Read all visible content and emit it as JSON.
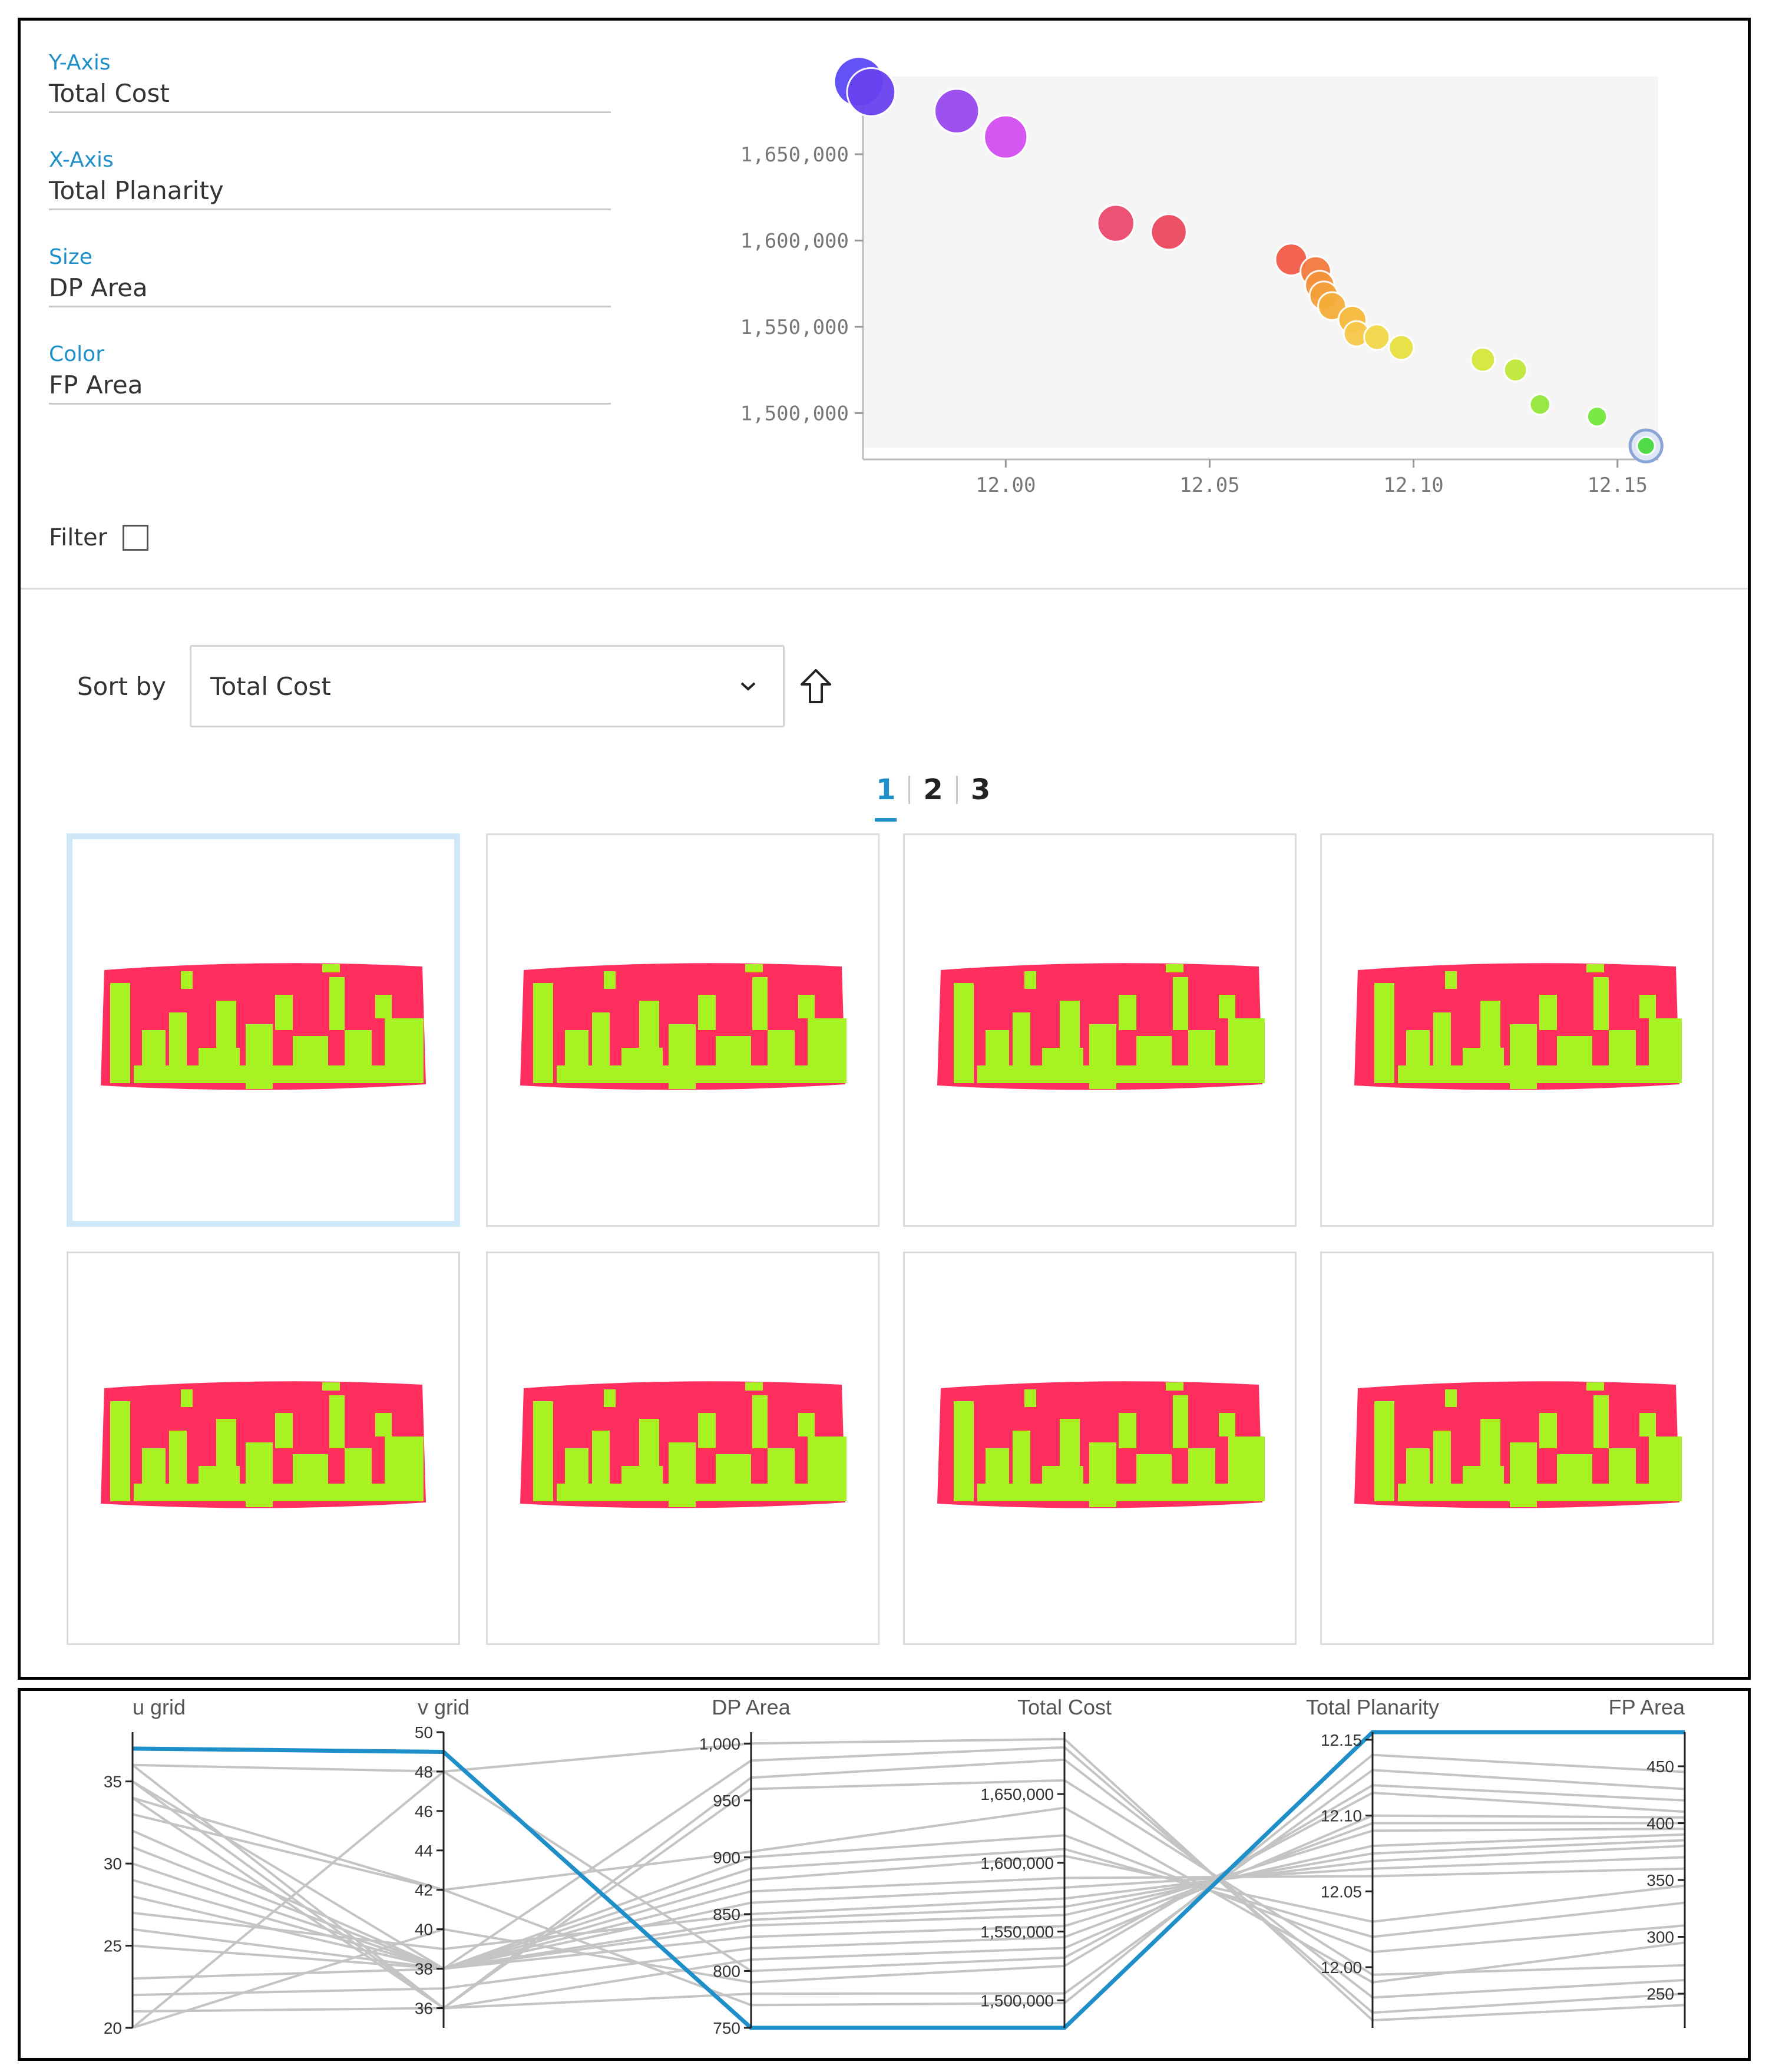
{
  "axis_config": {
    "y_axis": {
      "label": "Y-Axis",
      "value": "Total Cost"
    },
    "x_axis": {
      "label": "X-Axis",
      "value": "Total Planarity"
    },
    "size": {
      "label": "Size",
      "value": "DP Area"
    },
    "color": {
      "label": "Color",
      "value": "FP Area"
    }
  },
  "filter": {
    "label": "Filter",
    "checked": false
  },
  "sort": {
    "label": "Sort by",
    "selected": "Total Cost",
    "direction_icon": "sort-ascending-arrow-icon"
  },
  "pagination": {
    "pages": [
      "1",
      "2",
      "3"
    ],
    "active": "1"
  },
  "colors": {
    "accent": "#1f8fc9",
    "panel_red": "#ff2e5f",
    "panel_green": "#a6f222",
    "card_selected": "#cfe8f8"
  },
  "design_cards": [
    {
      "name": "design-option-1",
      "selected": true
    },
    {
      "name": "design-option-2",
      "selected": false
    },
    {
      "name": "design-option-3",
      "selected": false
    },
    {
      "name": "design-option-4",
      "selected": false
    },
    {
      "name": "design-option-5",
      "selected": false
    },
    {
      "name": "design-option-6",
      "selected": false
    },
    {
      "name": "design-option-7",
      "selected": false
    },
    {
      "name": "design-option-8",
      "selected": false
    }
  ],
  "chart_data": [
    {
      "type": "scatter",
      "title": "",
      "xlabel": "Total Planarity",
      "ylabel": "Total Cost",
      "size_by": "DP Area",
      "color_by": "FP Area",
      "xlim": [
        11.965,
        12.16
      ],
      "ylim": [
        1480000,
        1695000
      ],
      "x_ticks": [
        "12.00",
        "12.05",
        "12.10",
        "12.15"
      ],
      "x_tick_values": [
        12.0,
        12.05,
        12.1,
        12.15
      ],
      "y_ticks": [
        "1,500,000",
        "1,550,000",
        "1,600,000",
        "1,650,000"
      ],
      "y_tick_values": [
        1500000,
        1550000,
        1600000,
        1650000
      ],
      "points": [
        {
          "x": 11.964,
          "y": 1692000,
          "size": 1000,
          "color": "#5b49f5"
        },
        {
          "x": 11.967,
          "y": 1686000,
          "size": 990,
          "color": "#6a42f0"
        },
        {
          "x": 11.988,
          "y": 1675000,
          "size": 960,
          "color": "#9949ee"
        },
        {
          "x": 12.0,
          "y": 1660000,
          "size": 950,
          "color": "#d44ef0"
        },
        {
          "x": 12.027,
          "y": 1610000,
          "size": 900,
          "color": "#ec4a6e"
        },
        {
          "x": 12.04,
          "y": 1605000,
          "size": 890,
          "color": "#ec4a5e"
        },
        {
          "x": 12.07,
          "y": 1589000,
          "size": 860,
          "color": "#f25c4a"
        },
        {
          "x": 12.076,
          "y": 1582000,
          "size": 850,
          "color": "#f27a3e"
        },
        {
          "x": 12.077,
          "y": 1574000,
          "size": 840,
          "color": "#f4923a"
        },
        {
          "x": 12.078,
          "y": 1568000,
          "size": 835,
          "color": "#f5a03a"
        },
        {
          "x": 12.08,
          "y": 1562000,
          "size": 830,
          "color": "#f5ae3a"
        },
        {
          "x": 12.085,
          "y": 1554000,
          "size": 830,
          "color": "#f7b93a"
        },
        {
          "x": 12.086,
          "y": 1546000,
          "size": 810,
          "color": "#f8c84a"
        },
        {
          "x": 12.091,
          "y": 1544000,
          "size": 810,
          "color": "#f1d94a"
        },
        {
          "x": 12.097,
          "y": 1538000,
          "size": 805,
          "color": "#e8e040"
        },
        {
          "x": 12.117,
          "y": 1531000,
          "size": 800,
          "color": "#d6e83c"
        },
        {
          "x": 12.125,
          "y": 1525000,
          "size": 790,
          "color": "#bfe83a"
        },
        {
          "x": 12.131,
          "y": 1505000,
          "size": 770,
          "color": "#94e83a"
        },
        {
          "x": 12.145,
          "y": 1498000,
          "size": 765,
          "color": "#74e83c"
        },
        {
          "x": 12.157,
          "y": 1481000,
          "size": 750,
          "color": "#4bdb40",
          "highlighted": true
        }
      ]
    },
    {
      "type": "parallel-coordinates",
      "axes": [
        {
          "name": "u grid",
          "range": [
            20,
            38
          ],
          "ticks": [
            "20",
            "25",
            "30",
            "35"
          ],
          "tick_values": [
            20,
            25,
            30,
            35
          ]
        },
        {
          "name": "v grid",
          "range": [
            35,
            50
          ],
          "ticks": [
            "36",
            "38",
            "40",
            "42",
            "44",
            "46",
            "48",
            "50"
          ],
          "tick_values": [
            36,
            38,
            40,
            42,
            44,
            46,
            48,
            50
          ]
        },
        {
          "name": "DP Area",
          "range": [
            750,
            1010
          ],
          "ticks": [
            "750",
            "800",
            "850",
            "900",
            "950",
            "1,000"
          ],
          "tick_values": [
            750,
            800,
            850,
            900,
            950,
            1000
          ]
        },
        {
          "name": "Total Cost",
          "range": [
            1480000,
            1695000
          ],
          "ticks": [
            "1,500,000",
            "1,550,000",
            "1,600,000",
            "1,650,000"
          ],
          "tick_values": [
            1500000,
            1550000,
            1600000,
            1650000
          ]
        },
        {
          "name": "Total Planarity",
          "range": [
            11.96,
            12.155
          ],
          "ticks": [
            "12.00",
            "12.05",
            "12.10",
            "12.15"
          ],
          "tick_values": [
            12.0,
            12.05,
            12.1,
            12.15
          ]
        },
        {
          "name": "FP Area",
          "range": [
            220,
            480
          ],
          "ticks": [
            "250",
            "300",
            "350",
            "400",
            "450"
          ],
          "tick_values": [
            250,
            300,
            350,
            400,
            450
          ]
        }
      ],
      "highlighted_line": [
        37,
        49,
        750,
        1480000,
        12.155,
        480
      ],
      "lines": [
        [
          36,
          48,
          1000,
          1690000,
          11.965,
          240
        ],
        [
          35,
          38,
          985,
          1684000,
          11.97,
          250
        ],
        [
          34,
          36,
          970,
          1675000,
          11.98,
          262
        ],
        [
          35,
          36,
          960,
          1660000,
          11.995,
          275
        ],
        [
          33,
          42,
          905,
          1640000,
          11.99,
          295
        ],
        [
          32,
          38,
          900,
          1620000,
          12.01,
          310
        ],
        [
          31,
          38,
          890,
          1610000,
          12.02,
          330
        ],
        [
          30,
          38,
          880,
          1605000,
          12.03,
          345
        ],
        [
          29,
          38,
          870,
          1589000,
          12.06,
          360
        ],
        [
          28,
          38,
          860,
          1582000,
          12.065,
          370
        ],
        [
          27,
          39,
          850,
          1574000,
          12.07,
          380
        ],
        [
          26,
          38,
          845,
          1568000,
          12.075,
          385
        ],
        [
          25,
          38,
          840,
          1562000,
          12.08,
          390
        ],
        [
          23,
          38,
          830,
          1554000,
          12.09,
          395
        ],
        [
          22,
          37,
          820,
          1546000,
          12.095,
          400
        ],
        [
          21,
          36,
          810,
          1538000,
          12.1,
          405
        ],
        [
          20,
          48,
          800,
          1531000,
          12.115,
          410
        ],
        [
          20,
          40,
          790,
          1525000,
          12.12,
          420
        ],
        [
          36,
          36,
          780,
          1505000,
          12.13,
          430
        ],
        [
          34,
          42,
          770,
          1498000,
          12.14,
          445
        ]
      ]
    }
  ]
}
